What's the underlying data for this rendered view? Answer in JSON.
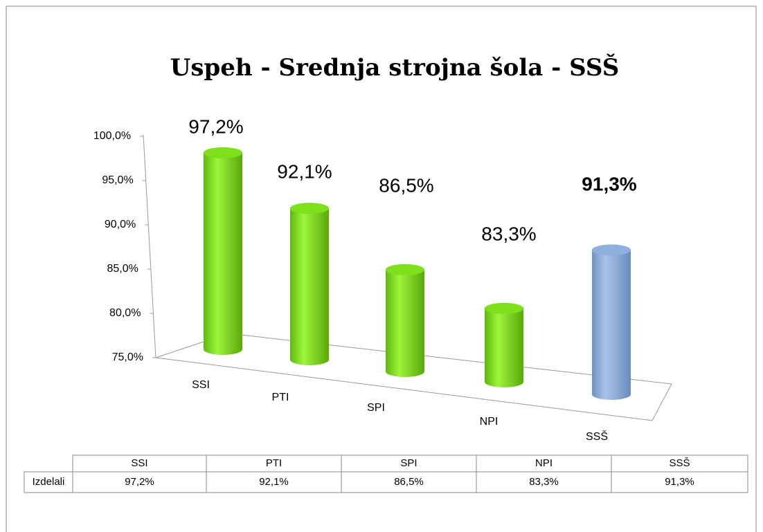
{
  "chart_data": {
    "type": "bar",
    "title": "Uspeh - Srednja strojna šola - SSŠ",
    "categories": [
      "SSI",
      "PTI",
      "SPI",
      "NPI",
      "SSŠ"
    ],
    "values": [
      97.2,
      92.1,
      86.5,
      83.3,
      91.3
    ],
    "value_labels": [
      "97,2%",
      "92,1%",
      "86,5%",
      "83,3%",
      "91,3%"
    ],
    "colors": [
      "#7ee01a",
      "#7ee01a",
      "#7ee01a",
      "#7ee01a",
      "#8fb0dc"
    ],
    "ylim": [
      75,
      100
    ],
    "yticks": [
      {
        "value": 75,
        "label": "75,0%"
      },
      {
        "value": 80,
        "label": "80,0%"
      },
      {
        "value": 85,
        "label": "85,0%"
      },
      {
        "value": 90,
        "label": "90,0%"
      },
      {
        "value": 95,
        "label": "95,0%"
      },
      {
        "value": 100,
        "label": "100,0%"
      }
    ],
    "data_table": {
      "row_label": "Izdelali"
    }
  }
}
